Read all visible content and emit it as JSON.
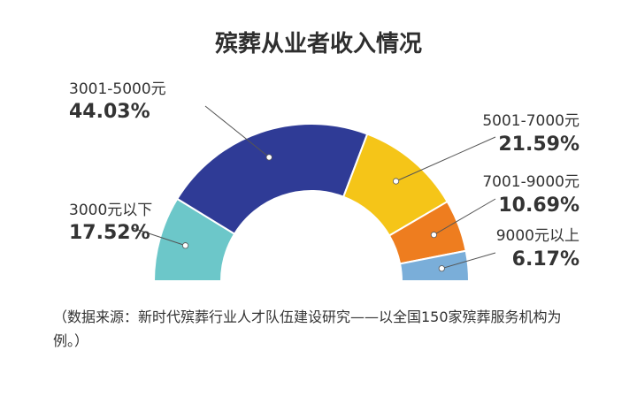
{
  "chart_data": {
    "type": "pie",
    "variant": "half-donut",
    "title": "殡葬从业者收入情况",
    "slices": [
      {
        "label": "3000元以下",
        "value": 17.52,
        "value_text": "17.52%",
        "color": "#6cc7c9"
      },
      {
        "label": "3001-5000元",
        "value": 44.03,
        "value_text": "44.03%",
        "color": "#2f3b96"
      },
      {
        "label": "5001-7000元",
        "value": 21.59,
        "value_text": "21.59%",
        "color": "#f5c518"
      },
      {
        "label": "7001-9000元",
        "value": 10.69,
        "value_text": "10.69%",
        "color": "#ee7d1f"
      },
      {
        "label": "9000元以上",
        "value": 6.17,
        "value_text": "6.17%",
        "color": "#7aaed9"
      }
    ]
  },
  "source_note": "（数据来源：新时代殡葬行业人才队伍建设研究——以全国150家殡葬服务机构为例。）"
}
